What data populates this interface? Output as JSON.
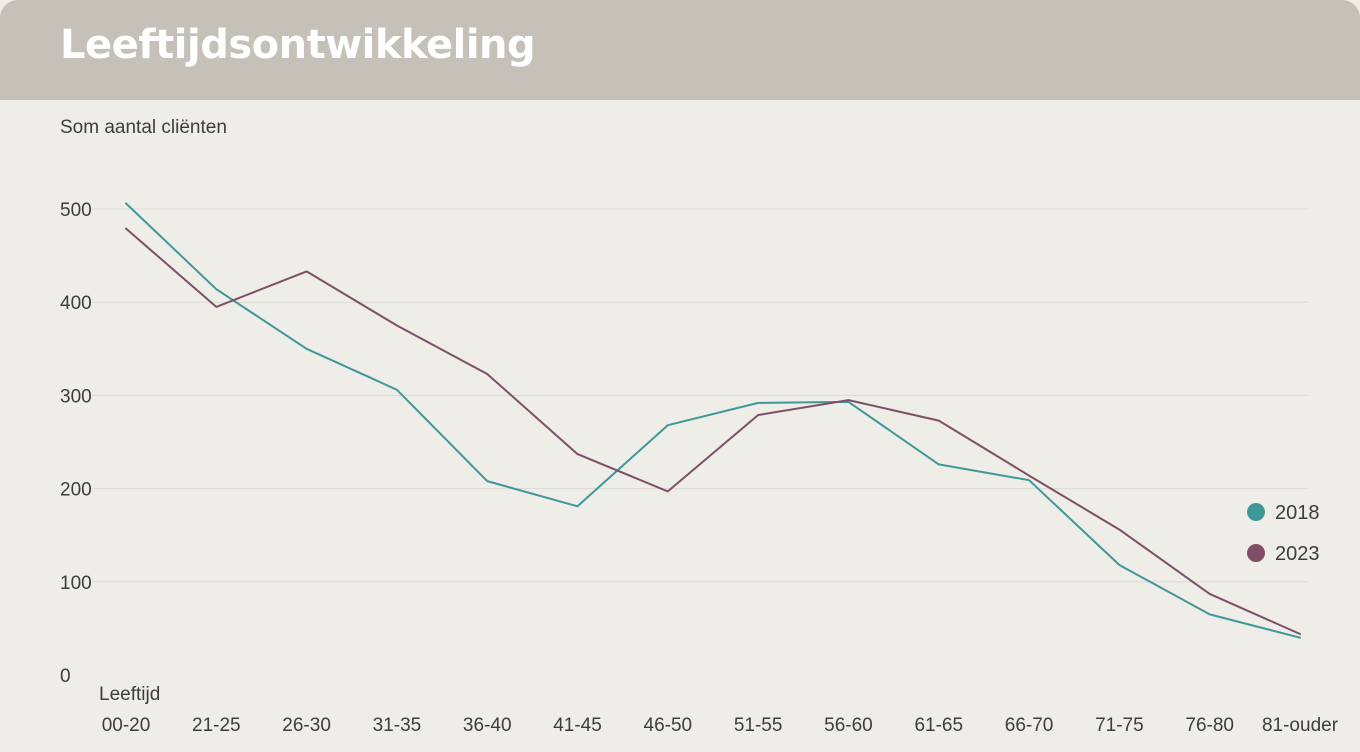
{
  "header": {
    "title": "Leeftijdsontwikkeling"
  },
  "chart_data": {
    "type": "line",
    "title": "Leeftijdsontwikkeling",
    "ylabel": "Som aantal cliënten",
    "xlabel": "Leeftijd",
    "ylim": [
      0,
      500
    ],
    "yticks": [
      0,
      100,
      200,
      300,
      400,
      500
    ],
    "grid": true,
    "legend_position": "right",
    "categories": [
      "00-20",
      "21-25",
      "26-30",
      "31-35",
      "36-40",
      "41-45",
      "46-50",
      "51-55",
      "56-60",
      "61-65",
      "66-70",
      "71-75",
      "76-80",
      "81-ouder"
    ],
    "series": [
      {
        "name": "2018",
        "color": "#3f9898",
        "values": [
          506,
          414,
          350,
          306,
          208,
          181,
          268,
          292,
          293,
          226,
          209,
          118,
          65,
          40
        ]
      },
      {
        "name": "2023",
        "color": "#7f4f68",
        "values": [
          479,
          395,
          433,
          375,
          323,
          237,
          197,
          279,
          295,
          273,
          214,
          156,
          87,
          44
        ]
      }
    ]
  }
}
